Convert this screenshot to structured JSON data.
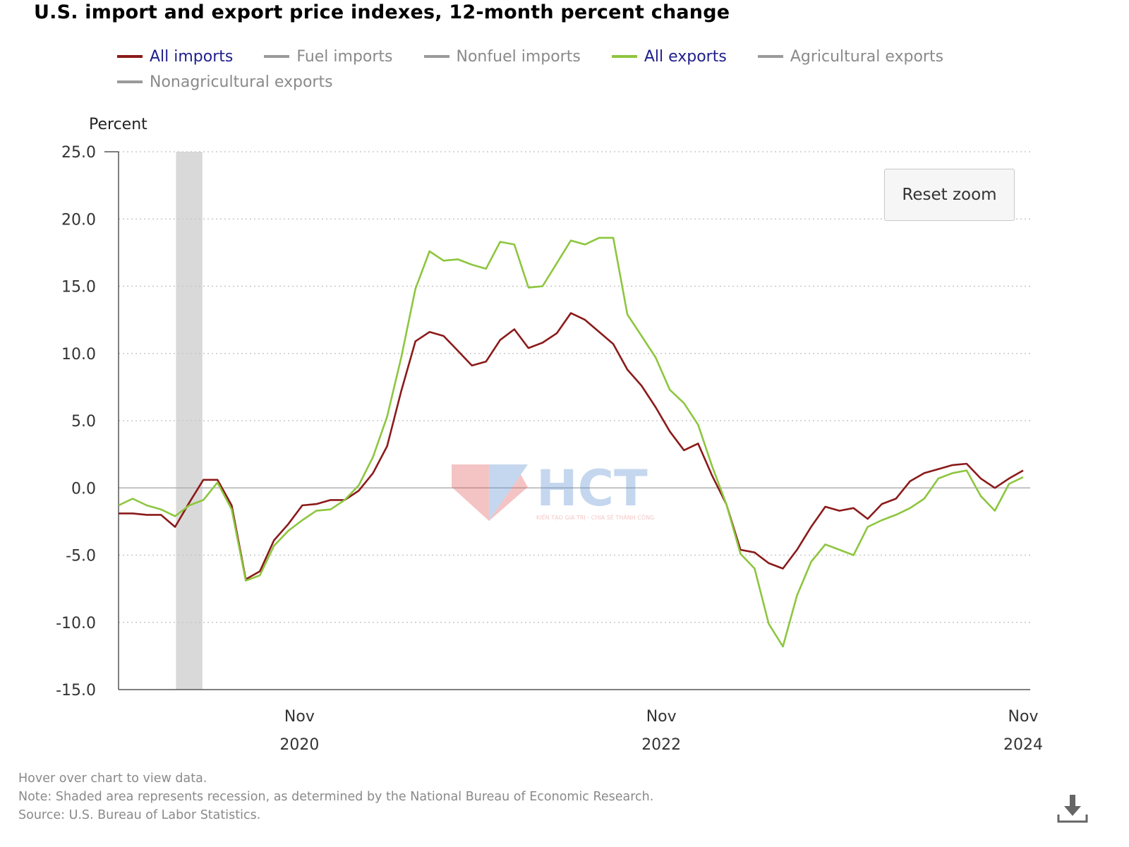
{
  "title": "U.S. import and export price indexes, 12-month percent change",
  "legend": [
    {
      "label": "All imports",
      "color": "#8b1a1a",
      "active": true
    },
    {
      "label": "Fuel imports",
      "color": "#9a9a9a",
      "active": false
    },
    {
      "label": "Nonfuel imports",
      "color": "#9a9a9a",
      "active": false
    },
    {
      "label": "All exports",
      "color": "#8dc63f",
      "active": true
    },
    {
      "label": "Agricultural exports",
      "color": "#9a9a9a",
      "active": false
    },
    {
      "label": "Nonagricultural exports",
      "color": "#9a9a9a",
      "active": false
    }
  ],
  "reset_zoom_label": "Reset zoom",
  "notes": {
    "hover": "Hover over chart to view data.",
    "note": "Note: Shaded area represents recession, as determined by the National Bureau of Economic Research.",
    "source": "Source: U.S. Bureau of Labor Statistics."
  },
  "watermark": {
    "text": "HCT",
    "tagline": "KIẾN TẠO GIÁ TRỊ - CHIA SẺ THÀNH CÔNG"
  },
  "icons": {
    "download": "download-icon"
  },
  "chart_data": {
    "type": "line",
    "ylabel": "Percent",
    "ylim": [
      -15,
      25
    ],
    "yticks": [
      "25.0",
      "20.0",
      "15.0",
      "10.0",
      "5.0",
      "0.0",
      "-5.0",
      "-10.0",
      "-15.0"
    ],
    "xlim": [
      "2019-11",
      "2024-11"
    ],
    "xticks": [
      {
        "month": "Nov",
        "year": "2020",
        "date": "2020-11"
      },
      {
        "month": "Nov",
        "year": "2022",
        "date": "2022-11"
      },
      {
        "month": "Nov",
        "year": "2024",
        "date": "2024-11"
      }
    ],
    "recession": {
      "start": "2020-03",
      "end": "2020-04"
    },
    "grid": true,
    "legend_position": "top",
    "x": [
      "2019-11",
      "2019-12",
      "2020-01",
      "2020-02",
      "2020-03",
      "2020-04",
      "2020-05",
      "2020-06",
      "2020-07",
      "2020-08",
      "2020-09",
      "2020-10",
      "2020-11",
      "2020-12",
      "2021-01",
      "2021-02",
      "2021-03",
      "2021-04",
      "2021-05",
      "2021-06",
      "2021-07",
      "2021-08",
      "2021-09",
      "2021-10",
      "2021-11",
      "2021-12",
      "2022-01",
      "2022-02",
      "2022-03",
      "2022-04",
      "2022-05",
      "2022-06",
      "2022-07",
      "2022-08",
      "2022-09",
      "2022-10",
      "2022-11",
      "2022-12",
      "2023-01",
      "2023-02",
      "2023-03",
      "2023-04",
      "2023-05",
      "2023-06",
      "2023-07",
      "2023-08",
      "2023-09",
      "2023-10",
      "2023-11",
      "2023-12",
      "2024-01",
      "2024-02",
      "2024-03",
      "2024-04",
      "2024-05",
      "2024-06",
      "2024-07",
      "2024-08",
      "2024-09",
      "2024-10",
      "2024-11"
    ],
    "series": [
      {
        "name": "All imports",
        "color": "#8b1a1a",
        "values": [
          -1.9,
          -1.9,
          -2.0,
          -2.0,
          -2.9,
          -1.1,
          0.6,
          0.6,
          -1.3,
          -6.8,
          -6.2,
          -3.9,
          -2.7,
          -1.3,
          -1.2,
          -0.9,
          -0.9,
          -0.2,
          1.1,
          3.1,
          7.2,
          10.9,
          11.6,
          11.3,
          10.2,
          9.1,
          9.4,
          11.0,
          11.8,
          10.4,
          10.8,
          11.5,
          13.0,
          12.5,
          11.6,
          10.7,
          8.8,
          7.6,
          6.0,
          4.2,
          2.8,
          3.3,
          0.9,
          -1.2,
          -4.6,
          -4.8,
          -5.6,
          -6.0,
          -4.6,
          -2.9,
          -1.4,
          -1.7,
          -1.5,
          -2.3,
          -1.2,
          -0.8,
          0.5,
          1.1,
          1.4,
          1.7,
          1.8
        ]
      },
      {
        "name": "All exports",
        "color": "#8dc63f",
        "values": [
          -1.3,
          -0.8,
          -1.3,
          -1.6,
          -2.1,
          -1.3,
          -0.9,
          0.4,
          -1.6,
          -6.9,
          -6.5,
          -4.3,
          -3.2,
          -2.4,
          -1.7,
          -1.6,
          -0.9,
          0.2,
          2.3,
          5.3,
          9.7,
          14.8,
          17.6,
          16.9,
          17.0,
          16.6,
          16.3,
          18.3,
          18.1,
          14.9,
          15.0,
          16.7,
          18.4,
          18.1,
          18.6,
          18.6,
          12.9,
          11.3,
          9.7,
          7.3,
          6.3,
          4.7,
          1.6,
          -1.2,
          -4.9,
          -6.0,
          -10.1,
          -11.8,
          -8.0,
          -5.5,
          -4.2,
          -4.6,
          -5.0,
          -2.9,
          -2.4,
          -2.0,
          -1.5,
          -0.8,
          0.7,
          1.1,
          1.3
        ]
      }
    ],
    "tail_values": {
      "All imports": [
        0.7,
        0.0,
        0.7,
        1.3
      ],
      "All exports": [
        -0.6,
        -1.7,
        0.3,
        0.8
      ]
    }
  }
}
